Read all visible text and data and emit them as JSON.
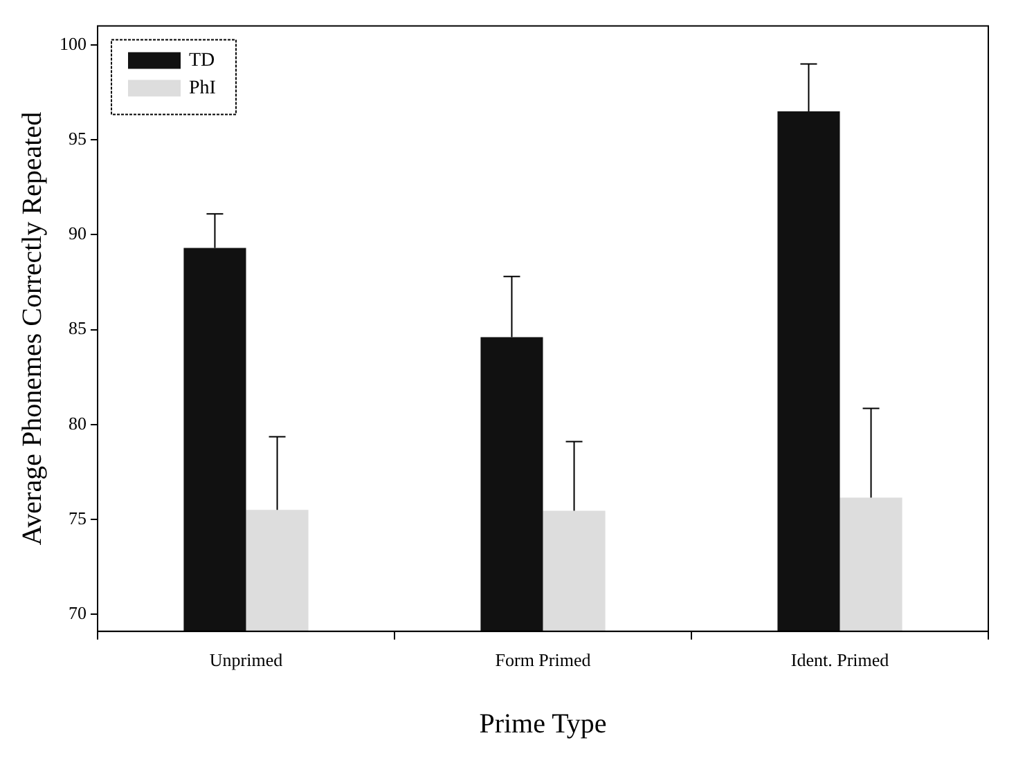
{
  "chart_data": {
    "type": "bar",
    "xlabel": "Prime Type",
    "ylabel": "Average Phonemes Correctly Repeated",
    "categories": [
      "Unprimed",
      "Form Primed",
      "Ident. Primed"
    ],
    "series": [
      {
        "name": "TD",
        "color": "#111111",
        "values": [
          89.3,
          84.6,
          96.5
        ],
        "errors": [
          [
            89.3,
            91.1
          ],
          [
            84.6,
            87.8
          ],
          [
            96.5,
            99.0
          ]
        ]
      },
      {
        "name": "PhI",
        "color": "#dddddd",
        "values": [
          75.5,
          75.45,
          76.15
        ],
        "errors": [
          [
            75.5,
            79.35
          ],
          [
            75.45,
            79.1
          ],
          [
            76.15,
            80.85
          ]
        ]
      }
    ],
    "ylim": [
      69.1,
      101
    ],
    "yticks": [
      70,
      75,
      80,
      85,
      90,
      95,
      100
    ],
    "grid": false,
    "legend": "top left"
  }
}
